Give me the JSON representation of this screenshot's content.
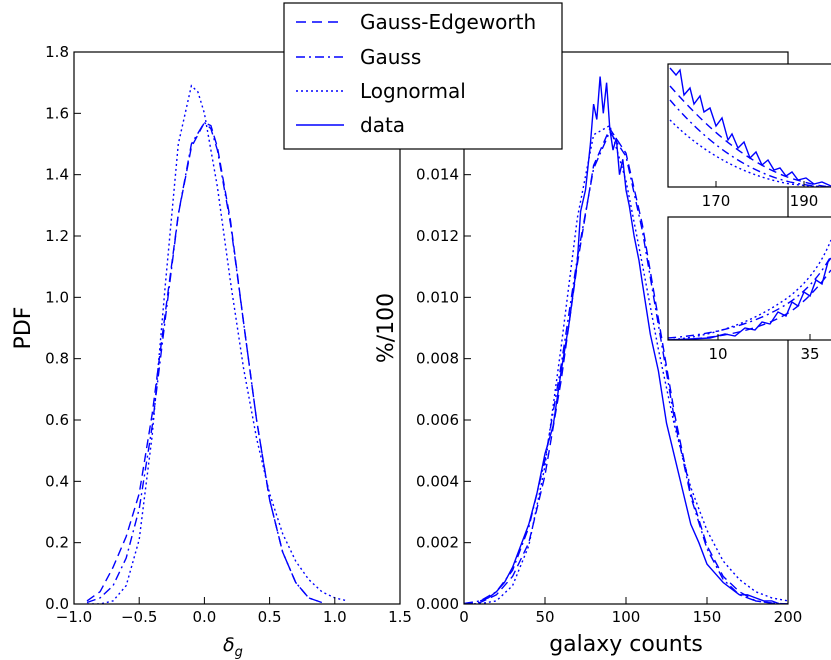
{
  "chart_data": [
    {
      "type": "line",
      "xlabel": "δ_g",
      "ylabel": "PDF",
      "xlim": [
        -1.0,
        1.5
      ],
      "ylim": [
        0.0,
        1.8
      ],
      "xticks": [
        "−1.0",
        "−0.5",
        "0.0",
        "0.5",
        "1.0",
        "1.5"
      ],
      "yticks": [
        "0.0",
        "0.2",
        "0.4",
        "0.6",
        "0.8",
        "1.0",
        "1.2",
        "1.4",
        "1.6",
        "1.8"
      ],
      "series": [
        {
          "name": "Gauss-Edgeworth",
          "style": "dashed",
          "x": [
            -0.9,
            -0.8,
            -0.7,
            -0.6,
            -0.5,
            -0.4,
            -0.3,
            -0.2,
            -0.1,
            0.0,
            0.05,
            0.1,
            0.2,
            0.3,
            0.4,
            0.5,
            0.6,
            0.7,
            0.8,
            0.9
          ],
          "y": [
            0.01,
            0.04,
            0.12,
            0.22,
            0.36,
            0.62,
            0.95,
            1.27,
            1.49,
            1.57,
            1.56,
            1.49,
            1.25,
            0.92,
            0.6,
            0.34,
            0.17,
            0.07,
            0.02,
            0.005
          ]
        },
        {
          "name": "Gauss",
          "style": "dashdot",
          "x": [
            -0.9,
            -0.8,
            -0.7,
            -0.6,
            -0.5,
            -0.4,
            -0.3,
            -0.2,
            -0.1,
            0.0,
            0.05,
            0.1,
            0.2,
            0.3,
            0.4,
            0.5,
            0.6,
            0.7,
            0.8,
            0.9
          ],
          "y": [
            0.005,
            0.02,
            0.06,
            0.15,
            0.31,
            0.58,
            0.93,
            1.27,
            1.5,
            1.57,
            1.55,
            1.48,
            1.24,
            0.92,
            0.6,
            0.34,
            0.17,
            0.07,
            0.02,
            0.005
          ]
        },
        {
          "name": "Lognormal",
          "style": "dotted",
          "x": [
            -0.9,
            -0.8,
            -0.7,
            -0.6,
            -0.5,
            -0.4,
            -0.3,
            -0.2,
            -0.1,
            -0.05,
            0.0,
            0.1,
            0.2,
            0.3,
            0.4,
            0.5,
            0.6,
            0.7,
            0.8,
            0.9,
            1.0,
            1.1
          ],
          "y": [
            0.0,
            0.0,
            0.01,
            0.06,
            0.21,
            0.55,
            1.04,
            1.5,
            1.69,
            1.67,
            1.6,
            1.36,
            1.05,
            0.77,
            0.54,
            0.36,
            0.23,
            0.14,
            0.08,
            0.04,
            0.02,
            0.01
          ]
        }
      ]
    },
    {
      "type": "line",
      "xlabel": "galaxy counts",
      "ylabel": "%/100",
      "xlim": [
        0,
        200
      ],
      "ylim": [
        0.0,
        0.018
      ],
      "xticks": [
        "0",
        "50",
        "100",
        "150",
        "200"
      ],
      "yticks": [
        "0.000",
        "0.002",
        "0.004",
        "0.006",
        "0.008",
        "0.010",
        "0.012",
        "0.014"
      ],
      "series": [
        {
          "name": "Gauss-Edgeworth",
          "style": "dashed",
          "x": [
            0,
            10,
            20,
            30,
            40,
            50,
            60,
            70,
            80,
            90,
            100,
            110,
            120,
            130,
            140,
            150,
            160,
            170,
            180,
            190,
            200
          ],
          "y": [
            0.0,
            5e-05,
            0.0003,
            0.0009,
            0.002,
            0.0042,
            0.0073,
            0.0111,
            0.0143,
            0.0155,
            0.0147,
            0.0124,
            0.0093,
            0.0062,
            0.0036,
            0.0019,
            0.0009,
            0.0004,
            0.0001,
            3e-05,
            0.0
          ]
        },
        {
          "name": "Gauss",
          "style": "dashdot",
          "x": [
            0,
            10,
            20,
            30,
            40,
            50,
            60,
            70,
            80,
            90,
            100,
            110,
            120,
            130,
            140,
            150,
            160,
            170,
            180,
            190,
            200
          ],
          "y": [
            2e-05,
            0.0001,
            0.0004,
            0.0011,
            0.0025,
            0.0047,
            0.0078,
            0.0113,
            0.0142,
            0.0154,
            0.0146,
            0.0122,
            0.0091,
            0.006,
            0.0035,
            0.0018,
            0.0008,
            0.0003,
            0.0001,
            3e-05,
            0.0
          ]
        },
        {
          "name": "Lognormal",
          "style": "dotted",
          "x": [
            0,
            10,
            20,
            30,
            40,
            50,
            60,
            70,
            80,
            90,
            100,
            110,
            120,
            130,
            140,
            150,
            160,
            170,
            180,
            190,
            200
          ],
          "y": [
            0.0,
            1e-05,
            0.0001,
            0.0006,
            0.0019,
            0.0045,
            0.0084,
            0.0126,
            0.0153,
            0.0156,
            0.0138,
            0.0111,
            0.0083,
            0.0058,
            0.0038,
            0.0024,
            0.0014,
            0.0008,
            0.0004,
            0.0002,
            0.0001
          ]
        },
        {
          "name": "data",
          "style": "solid",
          "x": [
            10,
            15,
            20,
            25,
            30,
            35,
            40,
            45,
            50,
            55,
            60,
            65,
            70,
            72,
            75,
            78,
            80,
            82,
            84,
            86,
            88,
            90,
            92,
            94,
            96,
            98,
            100,
            102,
            105,
            108,
            110,
            115,
            120,
            125,
            130,
            135,
            140,
            145,
            150,
            155,
            160,
            165,
            170,
            175,
            180,
            185,
            190,
            195
          ],
          "y": [
            0.0001,
            0.0002,
            0.0004,
            0.0007,
            0.0012,
            0.0019,
            0.0026,
            0.0036,
            0.0049,
            0.0058,
            0.0076,
            0.0092,
            0.0112,
            0.0128,
            0.0135,
            0.015,
            0.0163,
            0.0158,
            0.0172,
            0.016,
            0.017,
            0.0155,
            0.0148,
            0.0152,
            0.014,
            0.0145,
            0.0135,
            0.013,
            0.012,
            0.0112,
            0.0105,
            0.0088,
            0.0076,
            0.0059,
            0.0048,
            0.0037,
            0.0026,
            0.002,
            0.0013,
            0.001,
            0.0007,
            0.0005,
            0.0003,
            0.0003,
            0.0002,
            0.0001,
            0.0001,
            0.0
          ]
        }
      ]
    }
  ],
  "insets": [
    {
      "xticks": [
        "170",
        "190"
      ]
    },
    {
      "xticks": [
        "10",
        "35"
      ]
    }
  ]
}
